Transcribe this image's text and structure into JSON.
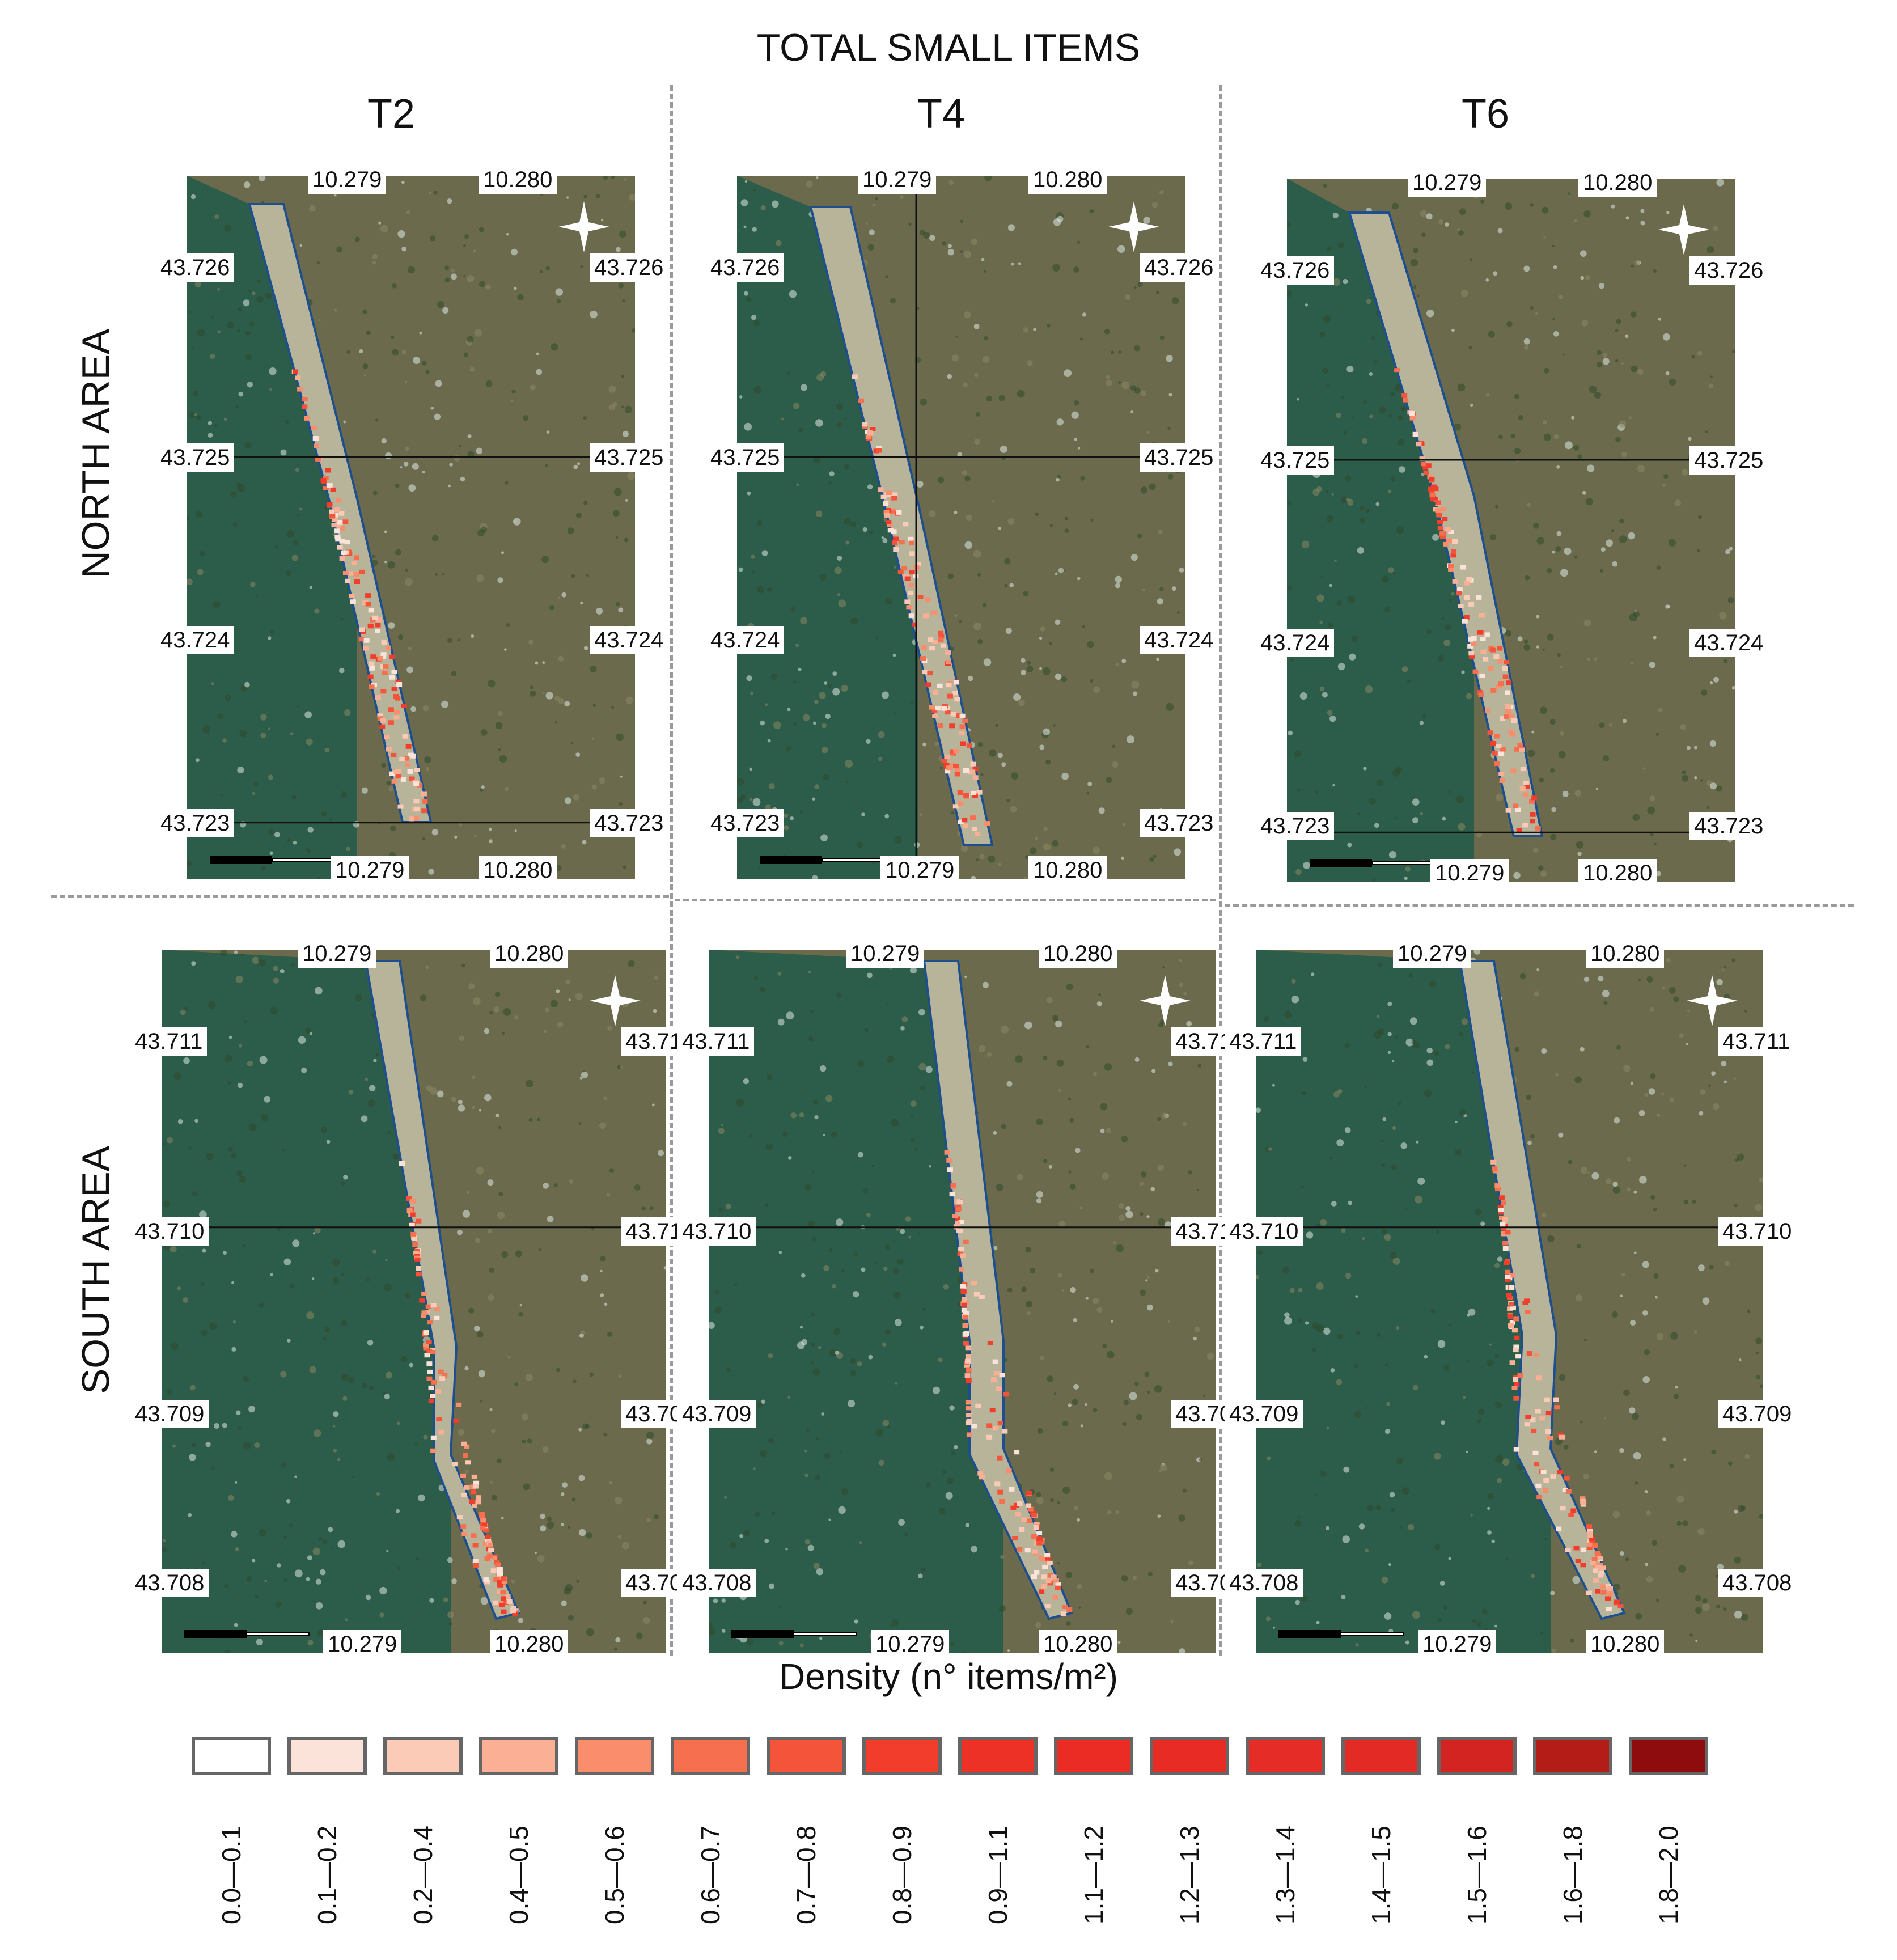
{
  "title": "TOTAL SMALL ITEMS",
  "columns": [
    "T2",
    "T4",
    "T6"
  ],
  "rows": [
    "NORTH AREA",
    "SOUTH AREA"
  ],
  "north": {
    "lon_left": "10.279",
    "lon_right": "10.280",
    "lat": [
      "43.726",
      "43.725",
      "43.724",
      "43.723"
    ]
  },
  "south": {
    "lon_left": "10.279",
    "lon_right": "10.280",
    "lat": [
      "43.711",
      "43.710",
      "43.709",
      "43.708"
    ]
  },
  "density_title": "Density (n° items/m²)",
  "legend": [
    {
      "label": "0.0—0.1",
      "color": "#ffffff"
    },
    {
      "label": "0.1—0.2",
      "color": "#fbe3da"
    },
    {
      "label": "0.2—0.4",
      "color": "#fbcbb8"
    },
    {
      "label": "0.4—0.5",
      "color": "#fbb096"
    },
    {
      "label": "0.5—0.6",
      "color": "#f98d6c"
    },
    {
      "label": "0.6—0.7",
      "color": "#f6704f"
    },
    {
      "label": "0.7—0.8",
      "color": "#f4553a"
    },
    {
      "label": "0.8—0.9",
      "color": "#f23d2c"
    },
    {
      "label": "0.9—1.1",
      "color": "#ee3127"
    },
    {
      "label": "1.1—1.2",
      "color": "#ea2c25"
    },
    {
      "label": "1.2—1.3",
      "color": "#e82b25"
    },
    {
      "label": "1.3—1.4",
      "color": "#e62c26"
    },
    {
      "label": "1.4—1.5",
      "color": "#e42a25"
    },
    {
      "label": "1.5—1.6",
      "color": "#d42422"
    },
    {
      "label": "1.6—1.8",
      "color": "#b41d17"
    },
    {
      "label": "1.8—2.0",
      "color": "#8e0c0d"
    }
  ],
  "colors": {
    "sea": "#2c5c4a",
    "land": "#6b6a4c",
    "sand": "#b8b49a",
    "outline": "#1d4f8f"
  }
}
